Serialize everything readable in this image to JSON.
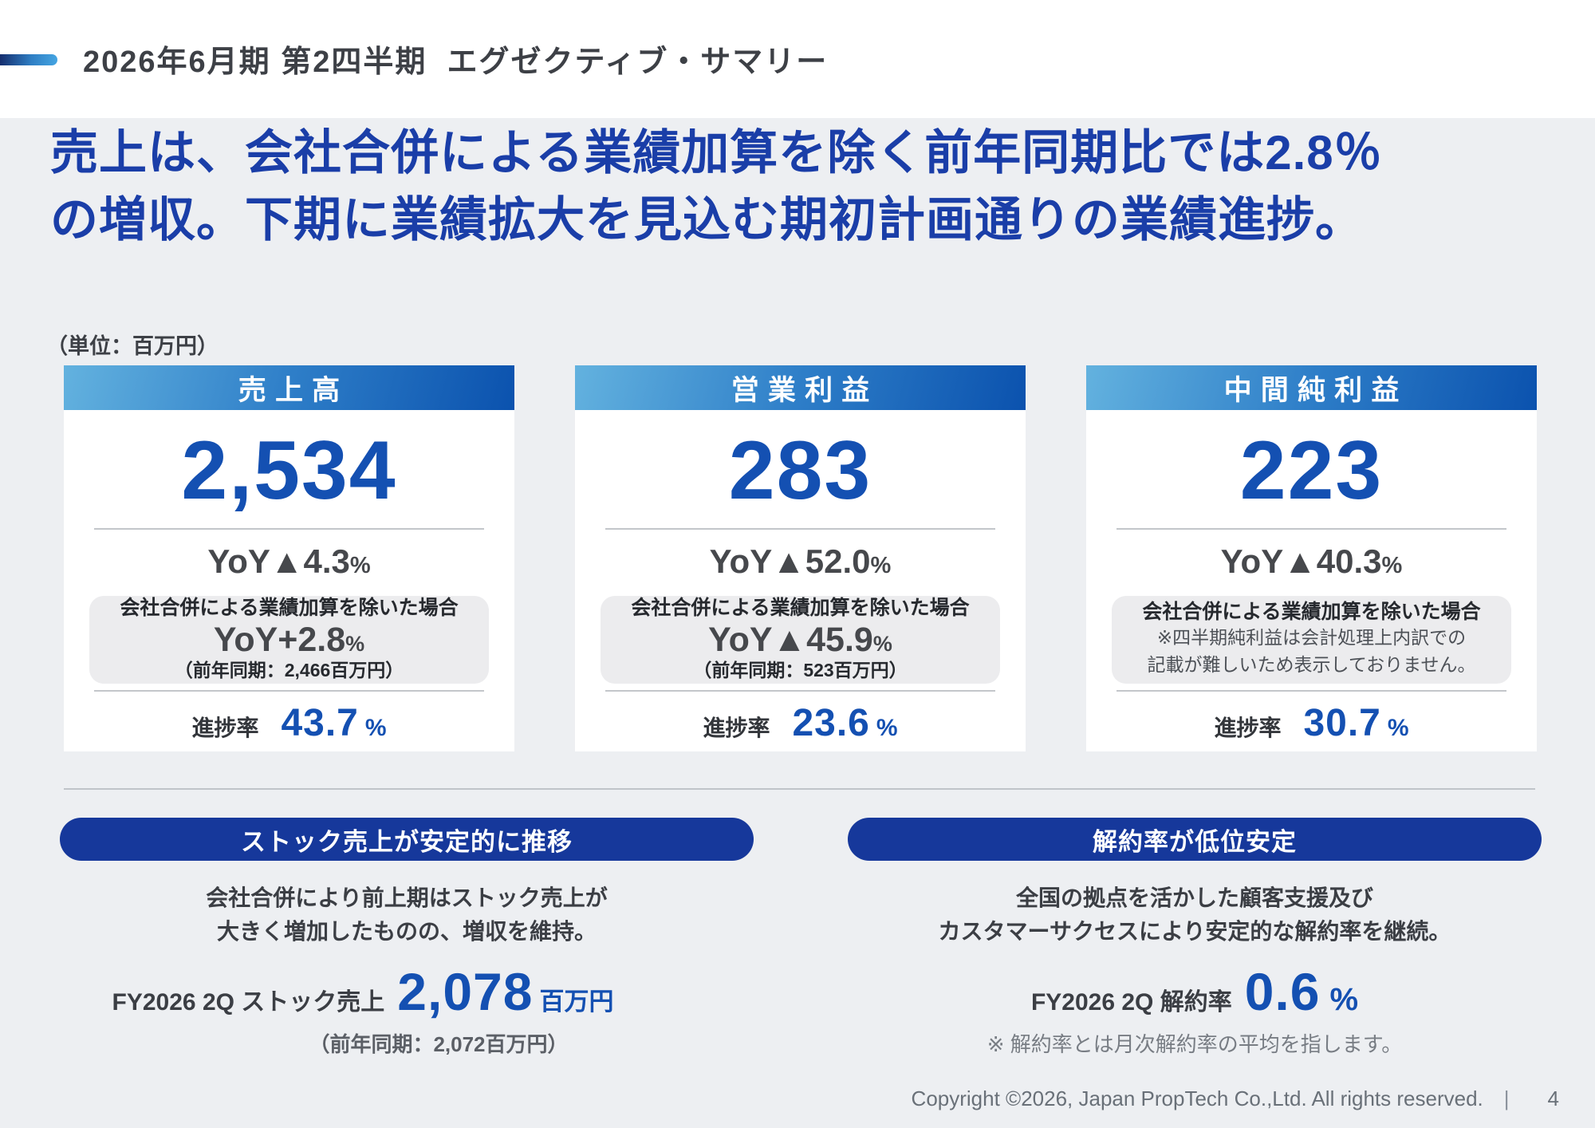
{
  "header": {
    "title": "2026年6月期 第2四半期  エグゼクティブ・サマリー"
  },
  "headline": {
    "line1": "売上は、会社合併による業績加算を除く前年同期比では2.8％",
    "line2": "の増収。下期に業績拡大を見込む期初計画通りの業績進捗。"
  },
  "unit_label": "（単位：百万円）",
  "symbols": {
    "percent": "%"
  },
  "cards": [
    {
      "title": "売上高",
      "value": "2,534",
      "yoy": "YoY▲4.3",
      "adjustment": {
        "title": "会社合併による業績加算を除いた場合",
        "value": "YoY+2.8",
        "note": "（前年同期：2,466百万円）"
      },
      "progress_label": "進捗率",
      "progress_value": "43.7"
    },
    {
      "title": "営業利益",
      "value": "283",
      "yoy": "YoY▲52.0",
      "adjustment": {
        "title": "会社合併による業績加算を除いた場合",
        "value": "YoY▲45.9",
        "note": "（前年同期：523百万円）"
      },
      "progress_label": "進捗率",
      "progress_value": "23.6"
    },
    {
      "title": "中間純利益",
      "value": "223",
      "yoy": "YoY▲40.3",
      "adjustment": {
        "title": "会社合併による業績加算を除いた場合",
        "note1": "※四半期純利益は会計処理上内訳での",
        "note2": "記載が難しいため表示しておりません。"
      },
      "progress_label": "進捗率",
      "progress_value": "30.7"
    }
  ],
  "highlights": {
    "left": {
      "pill": "ストック売上が安定的に推移",
      "desc1": "会社合併により前上期はストック売上が",
      "desc2": "大きく増加したものの、増収を維持。",
      "stat_label": "FY2026 2Q ストック売上",
      "stat_value": "2,078",
      "stat_unit": "百万円",
      "stat_note": "（前年同期：2,072百万円）"
    },
    "right": {
      "pill": "解約率が低位安定",
      "desc1": "全国の拠点を活かした顧客支援及び",
      "desc2": "カスタマーサクセスにより安定的な解約率を継続。",
      "stat_label": "FY2026 2Q 解約率",
      "stat_value": "0.6",
      "stat_unit": "%",
      "stat_note": "※ 解約率とは月次解約率の平均を指します。"
    }
  },
  "footer": {
    "copyright": "Copyright ©2026, Japan PropTech Co.,Ltd. All rights reserved.",
    "separator": "|",
    "page": "4"
  },
  "colors": {
    "headline_blue": "#1a3ea8",
    "number_blue": "#1450b2",
    "pill_navy": "#16389b",
    "card_header_gradient_start": "#63b2df",
    "card_header_gradient_end": "#0b52ae",
    "background_gray": "#edeff2"
  }
}
